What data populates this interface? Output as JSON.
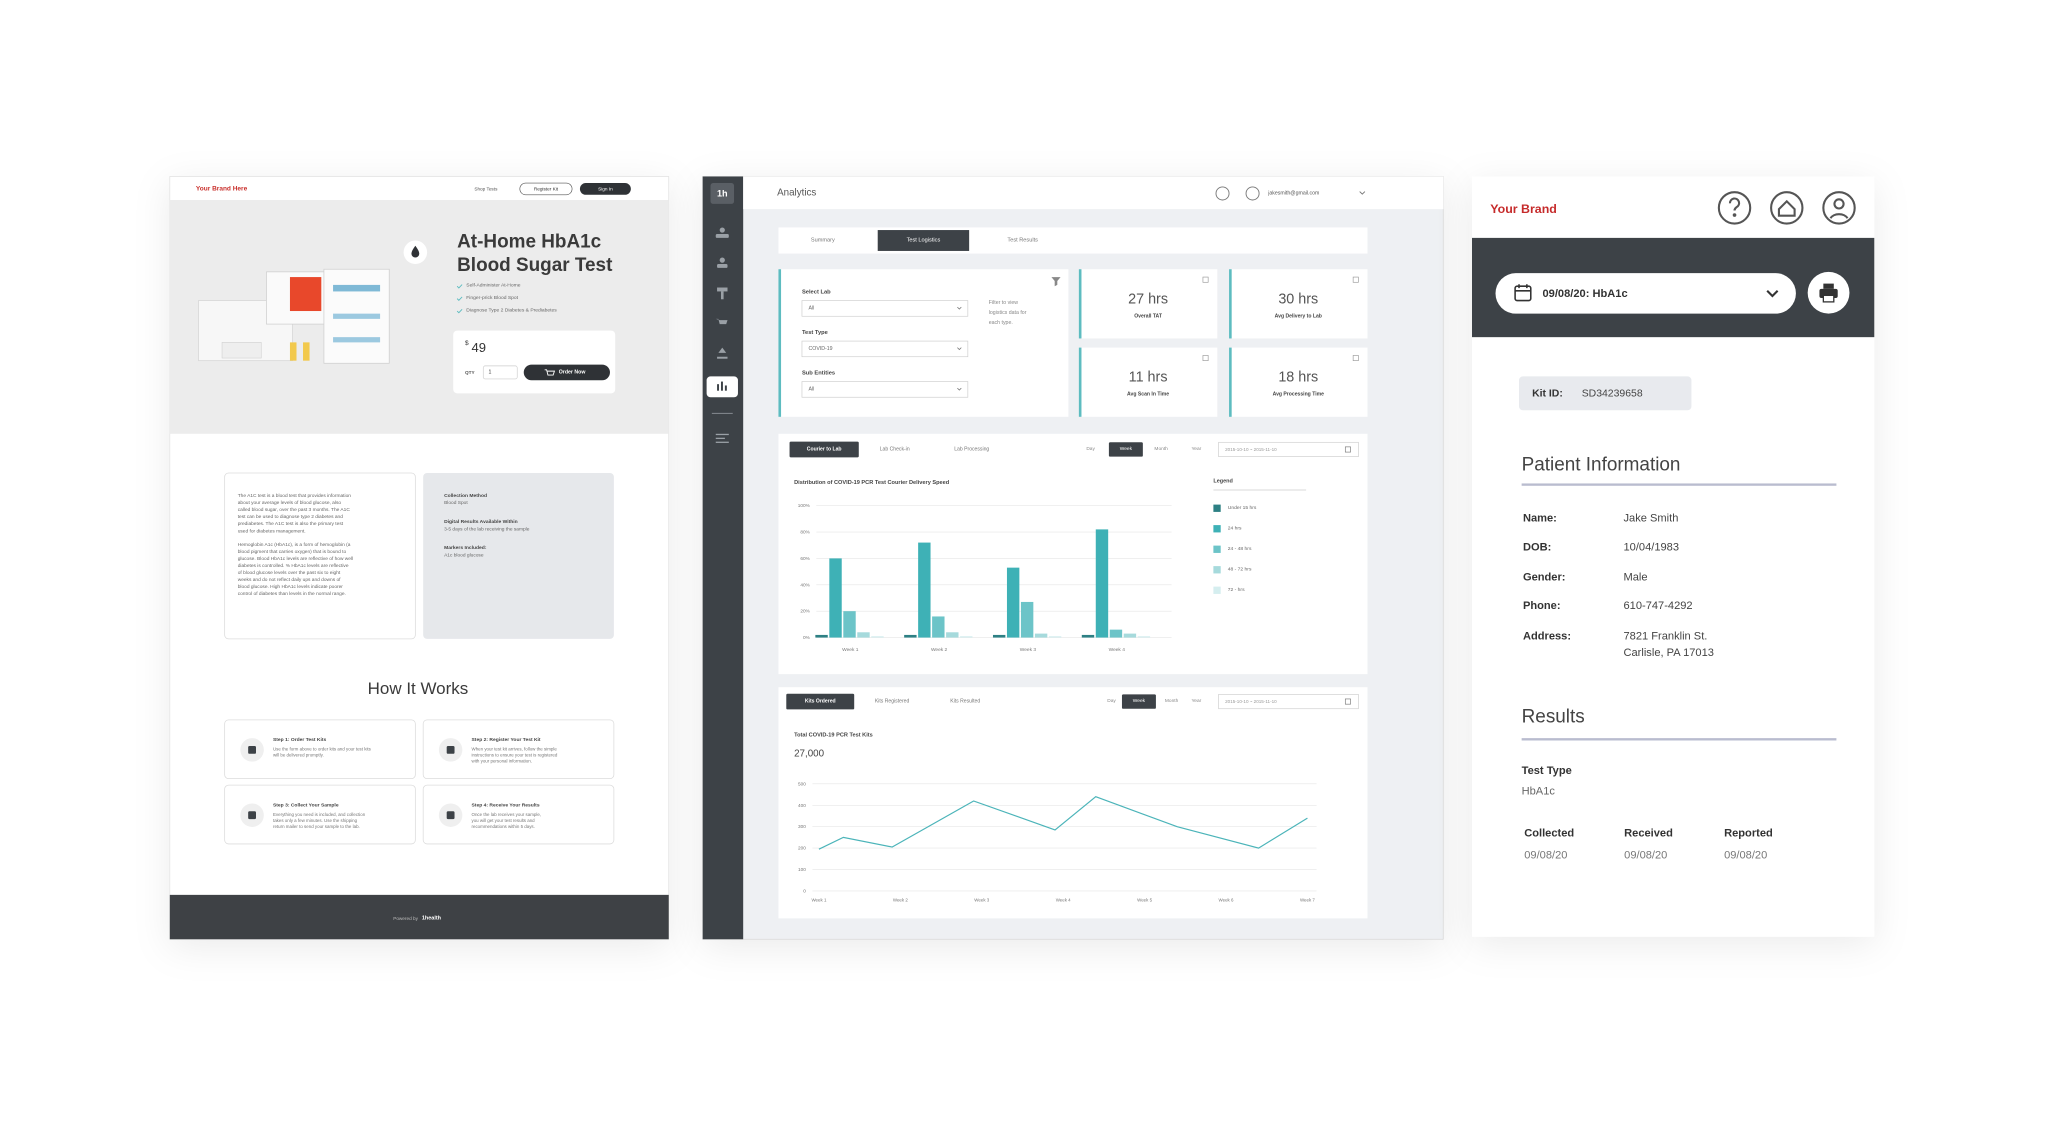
{
  "storefront": {
    "brand": "Your Brand Here",
    "nav": [
      "Shop Tests",
      "Register Kit",
      "Sign In"
    ],
    "title_lines": [
      "At-Home HbA1c",
      "Blood Sugar Test"
    ],
    "features": [
      "Self-Administer At-Home",
      "Finger-prick Blood Spot",
      "Diagnose Type 2 Diabetes & Prediabetes"
    ],
    "price_symbol": "$",
    "price": "49",
    "qty_label": "QTY",
    "qty": "1",
    "order_button": "Order Now",
    "description": [
      [
        "The A1C test is a blood test that provides information",
        "about your average levels of blood glucose, also",
        "called blood sugar, over the past 3 months. The A1C",
        "test can be used to diagnose type 2 diabetes and",
        "prediabetes. The A1C test is also the primary test",
        "used for diabetes management."
      ],
      [
        "Hemoglobin A1c (HbA1c), is a form of hemoglobin (a",
        "blood pigment that carries oxygen) that is bound to",
        "glucose. Blood HbA1c levels are reflective of how well",
        "diabetes is controlled. % HbA1c levels are reflective",
        "of blood glucose levels over the past six to eight",
        "weeks and do not reflect daily ups and downs of",
        "blood glucose. High HbA1c levels indicate poorer",
        "control of diabetes than levels in the normal range."
      ]
    ],
    "details": [
      {
        "label": "Collection Method",
        "text": "Blood Spot"
      },
      {
        "label": "Digital Results Available Within",
        "text": "3-5 days of the lab receiving the sample"
      },
      {
        "label": "Markers Included:",
        "text": "A1c blood glucose"
      }
    ],
    "how_title": "How It Works",
    "steps": [
      {
        "title": "Step 1: Order Test Kits",
        "lines": [
          "Use the form above to order kits and your test kits",
          "will be delivered promptly."
        ]
      },
      {
        "title": "Step 2: Register Your Test Kit",
        "lines": [
          "When your test kit arrives, follow the simple",
          "instructions to ensure your test is registered",
          "with your personal information."
        ]
      },
      {
        "title": "Step 3: Collect Your Sample",
        "lines": [
          "Everything you need is included, and collection",
          "takes only a few minutes. Use the shipping",
          "return mailer to send your sample to the lab."
        ]
      },
      {
        "title": "Step 4: Receive Your Results",
        "lines": [
          "Once the lab receives your sample,",
          "you will get your test results and",
          "recommendations within 5 days."
        ]
      }
    ],
    "footer_powered": "Powered by",
    "footer_brand": "1health"
  },
  "analytics": {
    "logo": "1h",
    "title": "Analytics",
    "email": "jakesmith@gmail.com",
    "tabs": [
      "Summary",
      "Test Logistics",
      "Test Results"
    ],
    "filters": [
      {
        "label": "Select Lab",
        "value": "All"
      },
      {
        "label": "Test Type",
        "value": "COVID-19"
      },
      {
        "label": "Sub Entities",
        "value": "All"
      }
    ],
    "filter_hint": [
      "Filter to view",
      "logistics data for",
      "each type."
    ],
    "stats": [
      {
        "value": "27 hrs",
        "label": "Overall TAT"
      },
      {
        "value": "30 hrs",
        "label": "Avg Delivery to Lab"
      },
      {
        "value": "11 hrs",
        "label": "Avg Scan In Time"
      },
      {
        "value": "18 hrs",
        "label": "Avg Processing Time"
      }
    ],
    "courier_chart": {
      "type": "bar",
      "tabs": [
        "Courier to Lab",
        "Lab Check-in",
        "Lab Processing"
      ],
      "periods": [
        "Day",
        "Week",
        "Month",
        "Year"
      ],
      "date_range": "2015-10-10 ~ 2015-11-10",
      "title": "Distribution of COVID-19 PCR Test Courier Delivery Speed",
      "legend_title": "Legend",
      "categories": [
        "Week 1",
        "Week 2",
        "Week 3",
        "Week 4"
      ],
      "series": [
        {
          "name": "Under 15 hrs",
          "color": "#2d8084",
          "values": [
            2,
            2,
            2,
            2
          ]
        },
        {
          "name": "24 hrs",
          "color": "#3eb1b6",
          "values": [
            60,
            72,
            53,
            82
          ]
        },
        {
          "name": "24 - 48 hrs",
          "color": "#6cc4c8",
          "values": [
            20,
            16,
            27,
            6
          ]
        },
        {
          "name": "48 - 72 hrs",
          "color": "#a6dadc",
          "values": [
            4,
            4,
            3,
            3
          ]
        },
        {
          "name": "72 - hrs",
          "color": "#d5eeef",
          "values": [
            1,
            1,
            1,
            1
          ]
        }
      ],
      "ylim": [
        0,
        100
      ],
      "yticks": [
        {
          "value": 0,
          "label": "0%"
        },
        {
          "value": 20,
          "label": "20%"
        },
        {
          "value": 40,
          "label": "40%"
        },
        {
          "value": 60,
          "label": "60%"
        },
        {
          "value": 80,
          "label": "80%"
        },
        {
          "value": 100,
          "label": "100%"
        }
      ],
      "grid": true
    },
    "kits_chart": {
      "type": "line",
      "tabs": [
        "Kits Ordered",
        "Kits Registered",
        "Kits Resulted"
      ],
      "periods": [
        "Day",
        "Week",
        "Month",
        "Year"
      ],
      "date_range": "2015-10-10 ~ 2015-11-10",
      "title": "Total COVID-19 PCR Test Kits",
      "total": "27,000",
      "color": "#4bb4b9",
      "x": [
        1,
        1.3,
        1.9,
        2.9,
        3.9,
        4.4,
        5.4,
        6.4,
        7
      ],
      "y": [
        195,
        250,
        205,
        420,
        285,
        440,
        300,
        200,
        340
      ],
      "xlim": [
        1,
        7
      ],
      "xticks": [
        {
          "value": 1,
          "label": "Week 1"
        },
        {
          "value": 2,
          "label": "Week 2"
        },
        {
          "value": 3,
          "label": "Week 3"
        },
        {
          "value": 4,
          "label": "Week 4"
        },
        {
          "value": 5,
          "label": "Week 5"
        },
        {
          "value": 6,
          "label": "Week 6"
        },
        {
          "value": 7,
          "label": "Week 7"
        }
      ],
      "ylim": [
        0,
        500
      ],
      "yticks": [
        0,
        100,
        200,
        300,
        400,
        500
      ],
      "grid": true
    }
  },
  "patient": {
    "brand": "Your Brand",
    "selector": "09/08/20: HbA1c",
    "kit_label": "Kit ID:",
    "kit_id": "SD34239658",
    "info_title": "Patient Information",
    "fields": [
      {
        "label": "Name:",
        "value": [
          "Jake Smith"
        ]
      },
      {
        "label": "DOB:",
        "value": [
          "10/04/1983"
        ]
      },
      {
        "label": "Gender:",
        "value": [
          "Male"
        ]
      },
      {
        "label": "Phone:",
        "value": [
          "610-747-4292"
        ]
      },
      {
        "label": "Address:",
        "value": [
          "7821 Franklin St.",
          "Carlisle, PA 17013"
        ]
      }
    ],
    "results_title": "Results",
    "test_type_label": "Test Type",
    "test_type": "HbA1c",
    "dates": [
      {
        "label": "Collected",
        "value": "09/08/20"
      },
      {
        "label": "Received",
        "value": "09/08/20"
      },
      {
        "label": "Reported",
        "value": "09/08/20"
      }
    ]
  }
}
